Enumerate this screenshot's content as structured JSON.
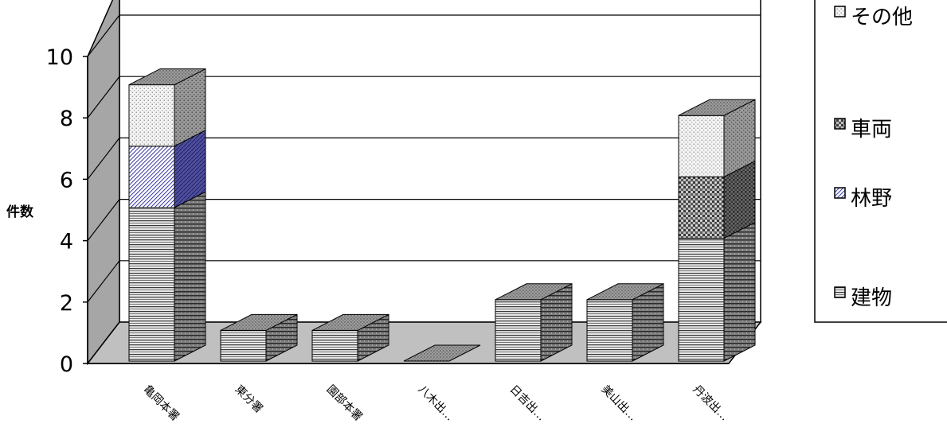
{
  "chart_data": {
    "type": "bar",
    "stacked": true,
    "three_d": true,
    "ylabel": "件数",
    "ylim": [
      0,
      10
    ],
    "yticks": [
      "0",
      "2",
      "4",
      "6",
      "8",
      "10"
    ],
    "grid": true,
    "legend_position": "right",
    "categories": [
      "亀岡本署",
      "東分署",
      "園部本署",
      "八木出…",
      "日吉出…",
      "美山出…",
      "丹波出…"
    ],
    "series": [
      {
        "name": "建物",
        "values": [
          5,
          1,
          1,
          0,
          2,
          2,
          4
        ]
      },
      {
        "name": "林野",
        "values": [
          2,
          0,
          0,
          0,
          0,
          0,
          0
        ]
      },
      {
        "name": "車両",
        "values": [
          0,
          0,
          0,
          0,
          0,
          0,
          2
        ]
      },
      {
        "name": "その他",
        "values": [
          2,
          0,
          0,
          0,
          0,
          0,
          2
        ]
      }
    ],
    "colors": {
      "建物": "#9a9a9a",
      "林野": "#5a5aa8",
      "車両": "#7a7a7a",
      "その他": "#c8c8c8",
      "floor": "#c0c0c0",
      "back_wall": "#ffffff",
      "side_wall": "#a6a6a6"
    }
  }
}
